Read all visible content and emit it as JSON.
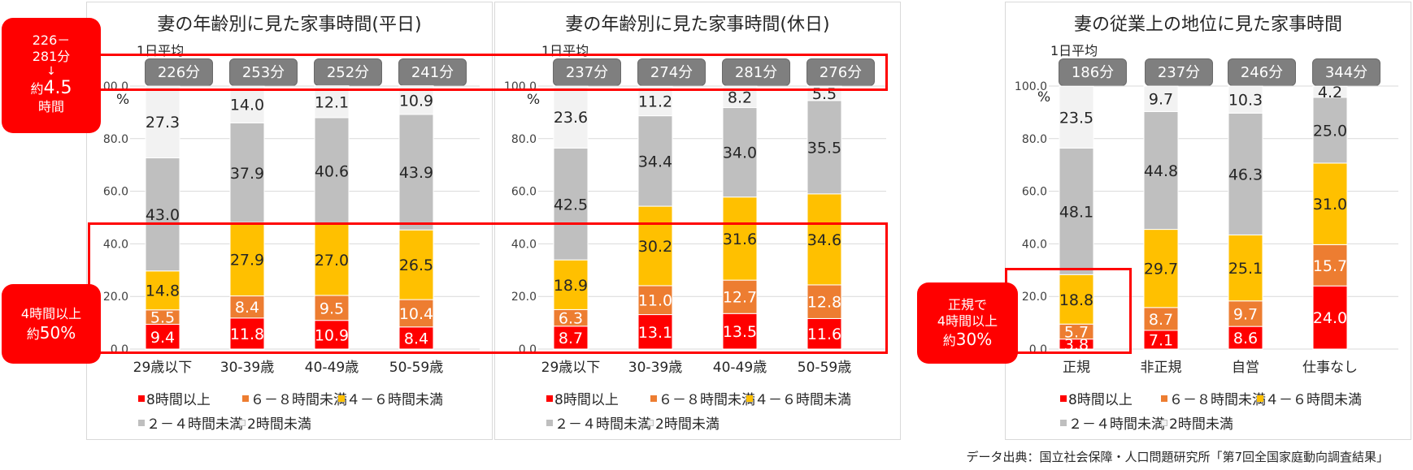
{
  "panels": [
    {
      "title": "妻の年齢別に見た家事時間(平日)",
      "avg_label": "1日平均",
      "pct_symbol": "%",
      "averages": [
        "226分",
        "253分",
        "252分",
        "241分"
      ]
    },
    {
      "title": "妻の年齢別に見た家事時間(休日)",
      "avg_label": "1日平均",
      "pct_symbol": "%",
      "averages": [
        "237分",
        "274分",
        "281分",
        "276分"
      ]
    },
    {
      "title": "妻の従業上の地位に見た家事時間",
      "avg_label": "1日平均",
      "pct_symbol": "%",
      "averages": [
        "186分",
        "237分",
        "246分",
        "344分"
      ]
    }
  ],
  "legend": [
    "8時間以上",
    "６－８時間未満",
    "４－６時間未満",
    "２－４時間未満",
    "2時間未満"
  ],
  "callouts": {
    "weekday_range": [
      "226－",
      "281分",
      "↓",
      "約",
      "4.5",
      "時間"
    ],
    "weekday_share": [
      "4時間以上",
      "約",
      "50%"
    ],
    "regular_share": [
      "正規で",
      "4時間以上",
      "約",
      "30%"
    ]
  },
  "source": "データ出典：国立社会保障・人口問題研究所「第7回全国家庭動向調査結果」",
  "colors": {
    "8時間以上": "#ff0000",
    "６－８時間未満": "#ed7d31",
    "４－６時間未満": "#ffc000",
    "２－４時間未満": "#bfbfbf",
    "2時間未満": "#f2f2f2",
    "pill": "#7f7f7f",
    "highlight": "#ff0000"
  },
  "chart_data": [
    {
      "type": "bar",
      "stacked": true,
      "title": "妻の年齢別に見た家事時間(平日)",
      "categories": [
        "29歳以下",
        "30-39歳",
        "40-49歳",
        "50-59歳"
      ],
      "ylabel": "%",
      "ylim": [
        0,
        100
      ],
      "yticks": [
        "0.0",
        "20.0",
        "40.0",
        "60.0",
        "80.0",
        "100.0"
      ],
      "grid": true,
      "legend_position": "bottom",
      "series": [
        {
          "name": "8時間以上",
          "values": [
            9.4,
            11.8,
            10.9,
            8.4
          ]
        },
        {
          "name": "６－８時間未満",
          "values": [
            5.5,
            8.4,
            9.5,
            10.4
          ]
        },
        {
          "name": "４－６時間未満",
          "values": [
            14.8,
            27.9,
            27.0,
            26.5
          ]
        },
        {
          "name": "２－４時間未満",
          "values": [
            43.0,
            37.9,
            40.6,
            43.9
          ]
        },
        {
          "name": "2時間未満",
          "values": [
            27.3,
            14.0,
            12.1,
            10.9
          ]
        }
      ]
    },
    {
      "type": "bar",
      "stacked": true,
      "title": "妻の年齢別に見た家事時間(休日)",
      "categories": [
        "29歳以下",
        "30-39歳",
        "40-49歳",
        "50-59歳"
      ],
      "ylabel": "%",
      "ylim": [
        0,
        100
      ],
      "yticks": [
        "0.0",
        "20.0",
        "40.0",
        "60.0",
        "80.0",
        "100.0"
      ],
      "grid": true,
      "legend_position": "bottom",
      "series": [
        {
          "name": "8時間以上",
          "values": [
            8.7,
            13.1,
            13.5,
            11.6
          ]
        },
        {
          "name": "６－８時間未満",
          "values": [
            6.3,
            11.0,
            12.7,
            12.8
          ]
        },
        {
          "name": "４－６時間未満",
          "values": [
            18.9,
            30.2,
            31.6,
            34.6
          ]
        },
        {
          "name": "２－４時間未満",
          "values": [
            42.5,
            34.4,
            34.0,
            35.5
          ]
        },
        {
          "name": "2時間未満",
          "values": [
            23.6,
            11.2,
            8.2,
            5.5
          ]
        }
      ]
    },
    {
      "type": "bar",
      "stacked": true,
      "title": "妻の従業上の地位に見た家事時間",
      "categories": [
        "正規",
        "非正規",
        "自営",
        "仕事なし"
      ],
      "ylabel": "%",
      "ylim": [
        0,
        100
      ],
      "yticks": [
        "0.0",
        "20.0",
        "40.0",
        "60.0",
        "80.0",
        "100.0"
      ],
      "grid": true,
      "legend_position": "bottom",
      "series": [
        {
          "name": "8時間以上",
          "values": [
            3.8,
            7.1,
            8.6,
            24.0
          ]
        },
        {
          "name": "６－８時間未満",
          "values": [
            5.7,
            8.7,
            9.7,
            15.7
          ]
        },
        {
          "name": "４－６時間未満",
          "values": [
            18.8,
            29.7,
            25.1,
            31.0
          ]
        },
        {
          "name": "２－４時間未満",
          "values": [
            48.1,
            44.8,
            46.3,
            25.0
          ]
        },
        {
          "name": "2時間未満",
          "values": [
            23.5,
            9.7,
            10.3,
            4.2
          ]
        }
      ]
    }
  ]
}
